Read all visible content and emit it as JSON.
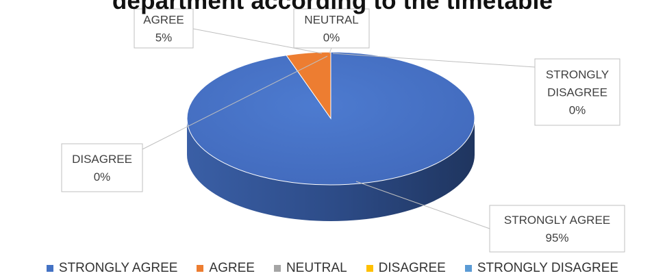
{
  "chart_data": {
    "type": "pie",
    "title": "department according to the timetable",
    "categories": [
      "STRONGLY AGREE",
      "AGREE",
      "NEUTRAL",
      "DISAGREE",
      "STRONGLY DISAGREE"
    ],
    "values": [
      95,
      5,
      0,
      0,
      0
    ],
    "data_labels": [
      {
        "name": "STRONGLY AGREE",
        "value": "95%"
      },
      {
        "name": "AGREE",
        "value": "5%"
      },
      {
        "name": "NEUTRAL",
        "value": "0%"
      },
      {
        "name": "DISAGREE",
        "value": "0%"
      },
      {
        "name": "STRONGLY DISAGREE",
        "value": "0%"
      }
    ],
    "colors": [
      "#4472C4",
      "#ED7D31",
      "#A5A5A5",
      "#FFC000",
      "#5B9BD5"
    ],
    "legend_position": "bottom",
    "style": "3d"
  }
}
